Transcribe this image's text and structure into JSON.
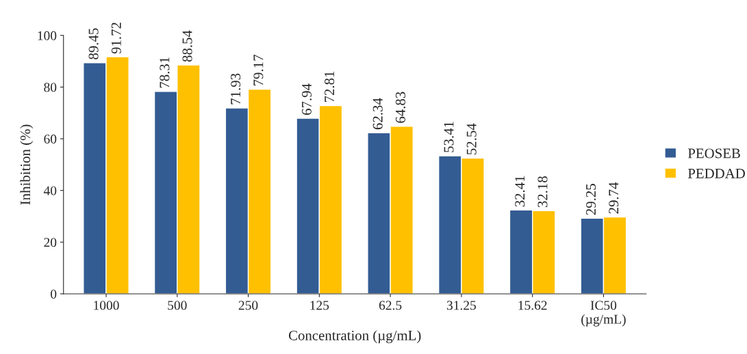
{
  "chart_data": {
    "type": "bar",
    "xlabel": "Concentration (µg/mL)",
    "ylabel": "Inhibition (%)",
    "categories": [
      "1000",
      "500",
      "250",
      "125",
      "62.5",
      "31.25",
      "15.62",
      "IC50\n(µg/mL)"
    ],
    "series": [
      {
        "name": "PEOSEB",
        "color": "#335c93",
        "values": [
          89.45,
          78.31,
          71.93,
          67.94,
          62.34,
          53.41,
          32.41,
          29.25
        ]
      },
      {
        "name": "PEDDAD",
        "color": "#ffc000",
        "values": [
          91.72,
          88.54,
          79.17,
          72.81,
          64.83,
          52.54,
          32.18,
          29.74
        ]
      }
    ],
    "ylim": [
      0,
      100
    ],
    "yticks": [
      0,
      20,
      40,
      60,
      80,
      100
    ],
    "grid": false,
    "legend": "right",
    "data_labels": true
  }
}
